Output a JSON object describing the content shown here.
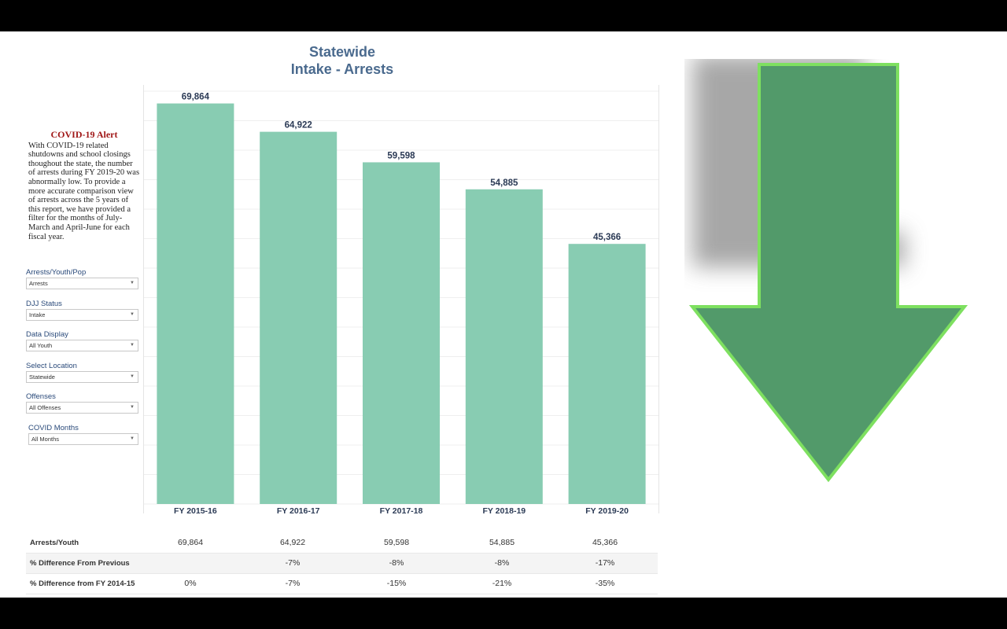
{
  "title_line1": "Statewide",
  "title_line2": "Intake - Arrests",
  "alert": {
    "heading": "COVID-19 Alert",
    "body": "With COVID-19 related shutdowns and school closings thoughout the state, the number of arrests during FY 2019-20 was abnormally low. To provide a more accurate comparison view of arrests across the 5 years of this report, we have provided a filter for the  months of July-March and April-June for each fiscal year."
  },
  "filters": [
    {
      "label": "Arrests/Youth/Pop",
      "value": "Arrests"
    },
    {
      "label": "DJJ Status",
      "value": "Intake"
    },
    {
      "label": "Data Display",
      "value": "All Youth"
    },
    {
      "label": "Select Location",
      "value": "Statewide"
    },
    {
      "label": "Offenses",
      "value": "All Offenses"
    },
    {
      "label": "COVID Months",
      "value": "All Months"
    }
  ],
  "chart_data": {
    "type": "bar",
    "title": "Statewide Intake - Arrests",
    "categories": [
      "FY 2015-16",
      "FY 2016-17",
      "FY 2017-18",
      "FY 2018-19",
      "FY 2019-20"
    ],
    "values": [
      69864,
      64922,
      59598,
      54885,
      45366
    ],
    "value_labels": [
      "69,864",
      "64,922",
      "59,598",
      "54,885",
      "45,366"
    ],
    "ylim": [
      0,
      72000
    ],
    "grid": true,
    "bar_color": "#88ccb2",
    "label_color": "#2b3a55"
  },
  "table": {
    "rows": [
      {
        "label": "Arrests/Youth",
        "values": [
          "69,864",
          "64,922",
          "59,598",
          "54,885",
          "45,366"
        ]
      },
      {
        "label": "% Difference From Previous",
        "values": [
          "",
          "-7%",
          "-8%",
          "-8%",
          "-17%"
        ]
      },
      {
        "label": "% Difference from FY 2014-15",
        "values": [
          "0%",
          "-7%",
          "-15%",
          "-21%",
          "-35%"
        ]
      }
    ]
  },
  "arrow": {
    "icon": "down-arrow-icon",
    "fill": "#529a6a",
    "stroke": "#7ee060"
  }
}
